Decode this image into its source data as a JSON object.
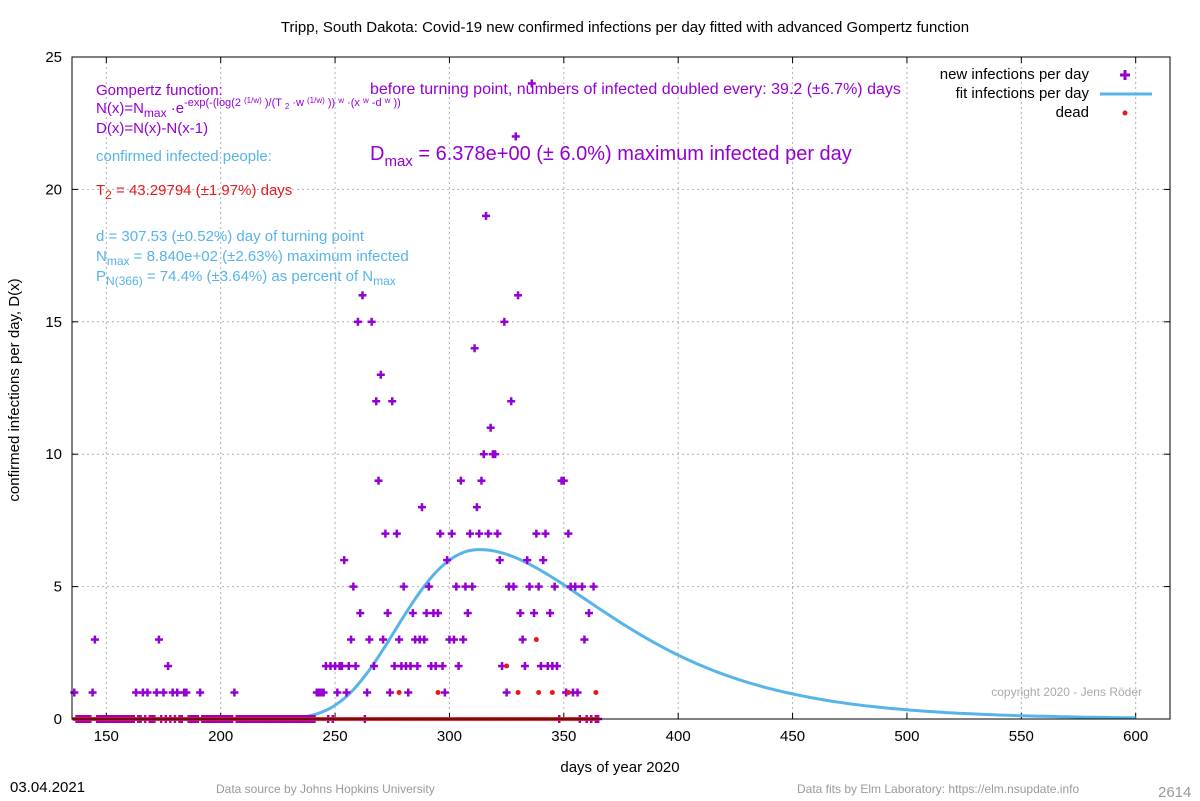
{
  "chart_data": {
    "type": "scatter",
    "title": "Tripp,  South Dakota: Covid-19 new confirmed infections per day fitted with advanced Gompertz function",
    "xlabel": "days of year 2020",
    "ylabel": "confirmed infections per day, D(x)",
    "xlim": [
      135,
      615
    ],
    "ylim": [
      0,
      25
    ],
    "x_ticks": [
      150,
      200,
      250,
      300,
      350,
      400,
      450,
      500,
      550,
      600
    ],
    "y_ticks": [
      0,
      5,
      10,
      15,
      20,
      25
    ],
    "grid": true,
    "legend_position": "top-right",
    "legend": [
      {
        "label": "new infections per day",
        "color": "#9400d3",
        "marker": "plus"
      },
      {
        "label": "fit infections per day",
        "color": "#56b4e9",
        "marker": "line"
      },
      {
        "label": "dead",
        "color": "#e41a1c",
        "marker": "dot"
      }
    ],
    "series": [
      {
        "name": "new infections per day",
        "color": "#9400d3",
        "points": [
          [
            136,
            1
          ],
          [
            140,
            0
          ],
          [
            144,
            1
          ],
          [
            145,
            3
          ],
          [
            148,
            0
          ],
          [
            152,
            0
          ],
          [
            156,
            0
          ],
          [
            160,
            0
          ],
          [
            163,
            1
          ],
          [
            166,
            1
          ],
          [
            168,
            1
          ],
          [
            170,
            0
          ],
          [
            172,
            1
          ],
          [
            173,
            3
          ],
          [
            175,
            1
          ],
          [
            177,
            2
          ],
          [
            179,
            1
          ],
          [
            181,
            1
          ],
          [
            182,
            0
          ],
          [
            184,
            1
          ],
          [
            185,
            1
          ],
          [
            188,
            0
          ],
          [
            191,
            1
          ],
          [
            195,
            0
          ],
          [
            200,
            0
          ],
          [
            206,
            1
          ],
          [
            210,
            0
          ],
          [
            215,
            0
          ],
          [
            220,
            0
          ],
          [
            225,
            0
          ],
          [
            230,
            0
          ],
          [
            235,
            0
          ],
          [
            240,
            0
          ],
          [
            242,
            1
          ],
          [
            243,
            1
          ],
          [
            244,
            1
          ],
          [
            245,
            1
          ],
          [
            246,
            2
          ],
          [
            247,
            0
          ],
          [
            248,
            2
          ],
          [
            250,
            2
          ],
          [
            251,
            1
          ],
          [
            252,
            2
          ],
          [
            253,
            2
          ],
          [
            254,
            6
          ],
          [
            255,
            1
          ],
          [
            256,
            2
          ],
          [
            257,
            3
          ],
          [
            258,
            5
          ],
          [
            259,
            2
          ],
          [
            260,
            15
          ],
          [
            261,
            4
          ],
          [
            262,
            16
          ],
          [
            263,
            0
          ],
          [
            264,
            1
          ],
          [
            265,
            3
          ],
          [
            266,
            15
          ],
          [
            267,
            2
          ],
          [
            268,
            12
          ],
          [
            269,
            9
          ],
          [
            270,
            13
          ],
          [
            271,
            3
          ],
          [
            272,
            7
          ],
          [
            273,
            4
          ],
          [
            274,
            1
          ],
          [
            275,
            12
          ],
          [
            276,
            2
          ],
          [
            277,
            7
          ],
          [
            278,
            3
          ],
          [
            279,
            2
          ],
          [
            280,
            5
          ],
          [
            281,
            2
          ],
          [
            282,
            1
          ],
          [
            283,
            2
          ],
          [
            284,
            4
          ],
          [
            285,
            3
          ],
          [
            286,
            2
          ],
          [
            287,
            3
          ],
          [
            288,
            8
          ],
          [
            289,
            3
          ],
          [
            290,
            4
          ],
          [
            291,
            5
          ],
          [
            292,
            2
          ],
          [
            293,
            4
          ],
          [
            294,
            2
          ],
          [
            295,
            4
          ],
          [
            296,
            7
          ],
          [
            297,
            2
          ],
          [
            298,
            1
          ],
          [
            299,
            6
          ],
          [
            300,
            3
          ],
          [
            301,
            7
          ],
          [
            302,
            3
          ],
          [
            303,
            5
          ],
          [
            304,
            2
          ],
          [
            305,
            9
          ],
          [
            306,
            3
          ],
          [
            307,
            5
          ],
          [
            308,
            4
          ],
          [
            309,
            7
          ],
          [
            310,
            5
          ],
          [
            311,
            14
          ],
          [
            312,
            8
          ],
          [
            313,
            7
          ],
          [
            314,
            9
          ],
          [
            315,
            10
          ],
          [
            316,
            19
          ],
          [
            317,
            7
          ],
          [
            318,
            11
          ],
          [
            319,
            10
          ],
          [
            320,
            10
          ],
          [
            321,
            7
          ],
          [
            322,
            6
          ],
          [
            323,
            2
          ],
          [
            324,
            15
          ],
          [
            325,
            1
          ],
          [
            326,
            5
          ],
          [
            327,
            12
          ],
          [
            328,
            5
          ],
          [
            329,
            22
          ],
          [
            330,
            16
          ],
          [
            331,
            4
          ],
          [
            332,
            3
          ],
          [
            333,
            2
          ],
          [
            334,
            6
          ],
          [
            335,
            5
          ],
          [
            336,
            24
          ],
          [
            337,
            4
          ],
          [
            338,
            7
          ],
          [
            339,
            5
          ],
          [
            340,
            2
          ],
          [
            341,
            6
          ],
          [
            342,
            7
          ],
          [
            343,
            2
          ],
          [
            344,
            4
          ],
          [
            345,
            2
          ],
          [
            346,
            5
          ],
          [
            347,
            2
          ],
          [
            348,
            0
          ],
          [
            349,
            9
          ],
          [
            350,
            9
          ],
          [
            351,
            1
          ],
          [
            352,
            7
          ],
          [
            353,
            5
          ],
          [
            354,
            1
          ],
          [
            355,
            5
          ],
          [
            356,
            1
          ],
          [
            357,
            0
          ],
          [
            358,
            5
          ],
          [
            359,
            3
          ],
          [
            361,
            4
          ],
          [
            363,
            5
          ]
        ]
      },
      {
        "name": "fit infections per day",
        "color": "#56b4e9",
        "curve": "gompertz",
        "Dmax": 6.378,
        "d": 307.53,
        "x_range": [
          136,
          600
        ],
        "peak_value": 6.4,
        "peak_x": 313
      },
      {
        "name": "dead",
        "color": "#e41a1c",
        "points": [
          [
            278,
            1
          ],
          [
            295,
            1
          ],
          [
            325,
            2
          ],
          [
            330,
            1
          ],
          [
            338,
            3
          ],
          [
            339,
            1
          ],
          [
            345,
            1
          ],
          [
            352,
            1
          ],
          [
            364,
            1
          ]
        ]
      }
    ],
    "annotations": {
      "gompertz_title": "Gompertz function:",
      "doubling": "before turning point, numbers of infected doubled every: 39.2 (±6.7%) days",
      "dmax_main": "D",
      "dmax_sub": "max",
      "dmax_rest": " = 6.378e+00 (± 6.0%) maximum infected per day",
      "formula_d": "D(x)=N(x)-N(x-1)",
      "confirmed": "confirmed infected people:",
      "t2_main": "T",
      "t2_sub": "2",
      "t2_rest": " = 43.29794 (±1.97%) days",
      "turning": "d = 307.53 (±0.52%) day of turning point",
      "nmax_main": "N",
      "nmax_sub": "max",
      "nmax_rest": " = 8.840e+02 (±2.63%) maximum infected",
      "p_main": "P",
      "p_sub": "N(366)",
      "p_rest": " = 74.4% (±3.64%) as percent of N",
      "p_sub2": "max",
      "copyright": "copyright 2020 - Jens Röder"
    }
  },
  "footer": {
    "date": "03.04.2021",
    "source": "Data source by Johns Hopkins University",
    "fits": "Data fits by Elm Laboratory: https://elm.nsupdate.info",
    "id": "2614"
  }
}
